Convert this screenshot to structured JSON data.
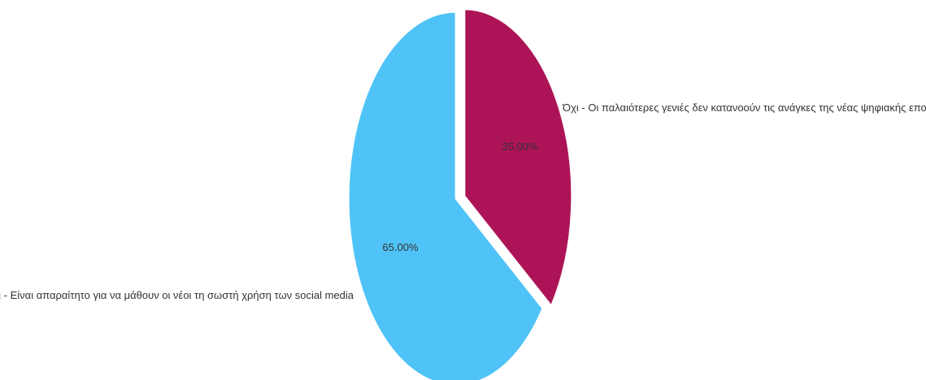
{
  "chart_data": {
    "type": "pie",
    "slices": [
      {
        "label": "Όχι - Οι παλαιότερες γενιές δεν κατανοούν τις ανάγκες της νέας ψηφιακής εποχής",
        "value": 35.0,
        "display": "35.00%",
        "color": "#ad1457"
      },
      {
        "label": "Ναι - Είναι απαραίτητο για να μάθουν οι νέοι τη σωστή χρήση των social media",
        "value": 65.0,
        "display": "65.00%",
        "color": "#4fc3f7"
      }
    ],
    "legend": "none"
  }
}
